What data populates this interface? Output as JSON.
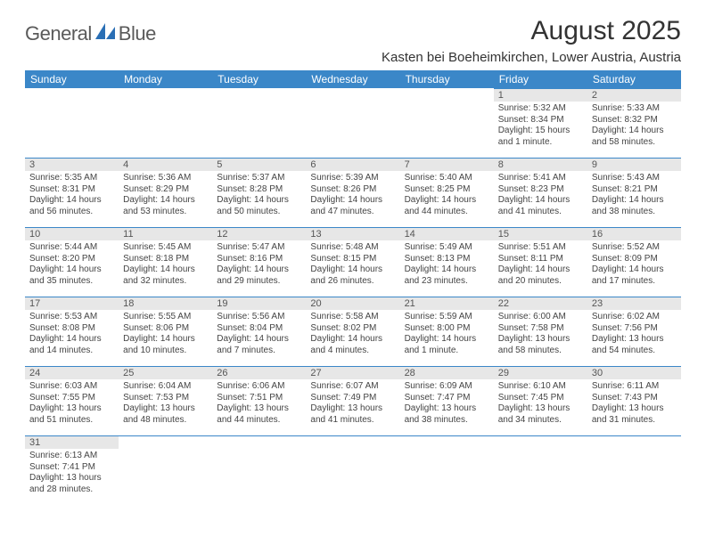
{
  "brand": {
    "word1": "General",
    "word2": "Blue",
    "logo_color": "#2a6fb5",
    "text_color": "#5a5a5a"
  },
  "header": {
    "month_title": "August 2025",
    "location": "Kasten bei Boeheimkirchen, Lower Austria, Austria"
  },
  "colors": {
    "header_bg": "#3b87c8",
    "header_fg": "#ffffff",
    "daynum_bg": "#e7e7e7",
    "row_rule": "#3b87c8",
    "body_text": "#444444"
  },
  "weekdays": [
    "Sunday",
    "Monday",
    "Tuesday",
    "Wednesday",
    "Thursday",
    "Friday",
    "Saturday"
  ],
  "weeks": [
    [
      {
        "n": "",
        "lines": [
          "",
          "",
          "",
          ""
        ]
      },
      {
        "n": "",
        "lines": [
          "",
          "",
          "",
          ""
        ]
      },
      {
        "n": "",
        "lines": [
          "",
          "",
          "",
          ""
        ]
      },
      {
        "n": "",
        "lines": [
          "",
          "",
          "",
          ""
        ]
      },
      {
        "n": "",
        "lines": [
          "",
          "",
          "",
          ""
        ]
      },
      {
        "n": "1",
        "lines": [
          "Sunrise: 5:32 AM",
          "Sunset: 8:34 PM",
          "Daylight: 15 hours",
          "and 1 minute."
        ]
      },
      {
        "n": "2",
        "lines": [
          "Sunrise: 5:33 AM",
          "Sunset: 8:32 PM",
          "Daylight: 14 hours",
          "and 58 minutes."
        ]
      }
    ],
    [
      {
        "n": "3",
        "lines": [
          "Sunrise: 5:35 AM",
          "Sunset: 8:31 PM",
          "Daylight: 14 hours",
          "and 56 minutes."
        ]
      },
      {
        "n": "4",
        "lines": [
          "Sunrise: 5:36 AM",
          "Sunset: 8:29 PM",
          "Daylight: 14 hours",
          "and 53 minutes."
        ]
      },
      {
        "n": "5",
        "lines": [
          "Sunrise: 5:37 AM",
          "Sunset: 8:28 PM",
          "Daylight: 14 hours",
          "and 50 minutes."
        ]
      },
      {
        "n": "6",
        "lines": [
          "Sunrise: 5:39 AM",
          "Sunset: 8:26 PM",
          "Daylight: 14 hours",
          "and 47 minutes."
        ]
      },
      {
        "n": "7",
        "lines": [
          "Sunrise: 5:40 AM",
          "Sunset: 8:25 PM",
          "Daylight: 14 hours",
          "and 44 minutes."
        ]
      },
      {
        "n": "8",
        "lines": [
          "Sunrise: 5:41 AM",
          "Sunset: 8:23 PM",
          "Daylight: 14 hours",
          "and 41 minutes."
        ]
      },
      {
        "n": "9",
        "lines": [
          "Sunrise: 5:43 AM",
          "Sunset: 8:21 PM",
          "Daylight: 14 hours",
          "and 38 minutes."
        ]
      }
    ],
    [
      {
        "n": "10",
        "lines": [
          "Sunrise: 5:44 AM",
          "Sunset: 8:20 PM",
          "Daylight: 14 hours",
          "and 35 minutes."
        ]
      },
      {
        "n": "11",
        "lines": [
          "Sunrise: 5:45 AM",
          "Sunset: 8:18 PM",
          "Daylight: 14 hours",
          "and 32 minutes."
        ]
      },
      {
        "n": "12",
        "lines": [
          "Sunrise: 5:47 AM",
          "Sunset: 8:16 PM",
          "Daylight: 14 hours",
          "and 29 minutes."
        ]
      },
      {
        "n": "13",
        "lines": [
          "Sunrise: 5:48 AM",
          "Sunset: 8:15 PM",
          "Daylight: 14 hours",
          "and 26 minutes."
        ]
      },
      {
        "n": "14",
        "lines": [
          "Sunrise: 5:49 AM",
          "Sunset: 8:13 PM",
          "Daylight: 14 hours",
          "and 23 minutes."
        ]
      },
      {
        "n": "15",
        "lines": [
          "Sunrise: 5:51 AM",
          "Sunset: 8:11 PM",
          "Daylight: 14 hours",
          "and 20 minutes."
        ]
      },
      {
        "n": "16",
        "lines": [
          "Sunrise: 5:52 AM",
          "Sunset: 8:09 PM",
          "Daylight: 14 hours",
          "and 17 minutes."
        ]
      }
    ],
    [
      {
        "n": "17",
        "lines": [
          "Sunrise: 5:53 AM",
          "Sunset: 8:08 PM",
          "Daylight: 14 hours",
          "and 14 minutes."
        ]
      },
      {
        "n": "18",
        "lines": [
          "Sunrise: 5:55 AM",
          "Sunset: 8:06 PM",
          "Daylight: 14 hours",
          "and 10 minutes."
        ]
      },
      {
        "n": "19",
        "lines": [
          "Sunrise: 5:56 AM",
          "Sunset: 8:04 PM",
          "Daylight: 14 hours",
          "and 7 minutes."
        ]
      },
      {
        "n": "20",
        "lines": [
          "Sunrise: 5:58 AM",
          "Sunset: 8:02 PM",
          "Daylight: 14 hours",
          "and 4 minutes."
        ]
      },
      {
        "n": "21",
        "lines": [
          "Sunrise: 5:59 AM",
          "Sunset: 8:00 PM",
          "Daylight: 14 hours",
          "and 1 minute."
        ]
      },
      {
        "n": "22",
        "lines": [
          "Sunrise: 6:00 AM",
          "Sunset: 7:58 PM",
          "Daylight: 13 hours",
          "and 58 minutes."
        ]
      },
      {
        "n": "23",
        "lines": [
          "Sunrise: 6:02 AM",
          "Sunset: 7:56 PM",
          "Daylight: 13 hours",
          "and 54 minutes."
        ]
      }
    ],
    [
      {
        "n": "24",
        "lines": [
          "Sunrise: 6:03 AM",
          "Sunset: 7:55 PM",
          "Daylight: 13 hours",
          "and 51 minutes."
        ]
      },
      {
        "n": "25",
        "lines": [
          "Sunrise: 6:04 AM",
          "Sunset: 7:53 PM",
          "Daylight: 13 hours",
          "and 48 minutes."
        ]
      },
      {
        "n": "26",
        "lines": [
          "Sunrise: 6:06 AM",
          "Sunset: 7:51 PM",
          "Daylight: 13 hours",
          "and 44 minutes."
        ]
      },
      {
        "n": "27",
        "lines": [
          "Sunrise: 6:07 AM",
          "Sunset: 7:49 PM",
          "Daylight: 13 hours",
          "and 41 minutes."
        ]
      },
      {
        "n": "28",
        "lines": [
          "Sunrise: 6:09 AM",
          "Sunset: 7:47 PM",
          "Daylight: 13 hours",
          "and 38 minutes."
        ]
      },
      {
        "n": "29",
        "lines": [
          "Sunrise: 6:10 AM",
          "Sunset: 7:45 PM",
          "Daylight: 13 hours",
          "and 34 minutes."
        ]
      },
      {
        "n": "30",
        "lines": [
          "Sunrise: 6:11 AM",
          "Sunset: 7:43 PM",
          "Daylight: 13 hours",
          "and 31 minutes."
        ]
      }
    ],
    [
      {
        "n": "31",
        "lines": [
          "Sunrise: 6:13 AM",
          "Sunset: 7:41 PM",
          "Daylight: 13 hours",
          "and 28 minutes."
        ]
      },
      {
        "n": "",
        "lines": [
          "",
          "",
          "",
          ""
        ]
      },
      {
        "n": "",
        "lines": [
          "",
          "",
          "",
          ""
        ]
      },
      {
        "n": "",
        "lines": [
          "",
          "",
          "",
          ""
        ]
      },
      {
        "n": "",
        "lines": [
          "",
          "",
          "",
          ""
        ]
      },
      {
        "n": "",
        "lines": [
          "",
          "",
          "",
          ""
        ]
      },
      {
        "n": "",
        "lines": [
          "",
          "",
          "",
          ""
        ]
      }
    ]
  ]
}
